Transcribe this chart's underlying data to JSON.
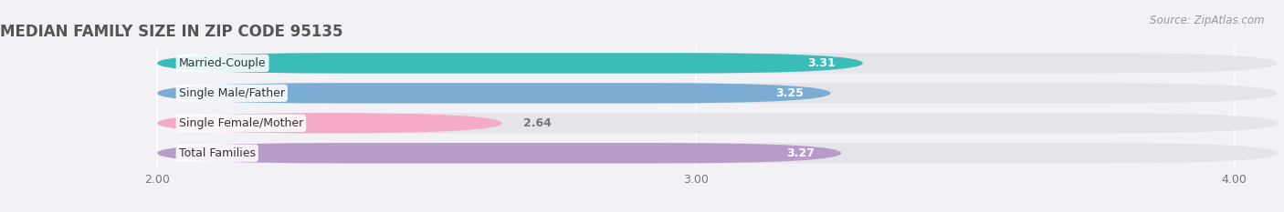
{
  "title": "MEDIAN FAMILY SIZE IN ZIP CODE 95135",
  "source": "Source: ZipAtlas.com",
  "categories": [
    "Married-Couple",
    "Single Male/Father",
    "Single Female/Mother",
    "Total Families"
  ],
  "values": [
    3.31,
    3.25,
    2.64,
    3.27
  ],
  "bar_colors": [
    "#3abdb8",
    "#7badd4",
    "#f4aac8",
    "#b89bc8"
  ],
  "bar_bg_color": "#e4e4ea",
  "xmin": 2.0,
  "xlim_left": 1.72,
  "xlim_right": 4.08,
  "xticks": [
    2.0,
    3.0,
    4.0
  ],
  "xtick_labels": [
    "2.00",
    "3.00",
    "4.00"
  ],
  "background_color": "#f2f2f6",
  "title_fontsize": 12,
  "label_fontsize": 9,
  "value_fontsize": 9,
  "source_fontsize": 8.5,
  "bar_height": 0.68
}
